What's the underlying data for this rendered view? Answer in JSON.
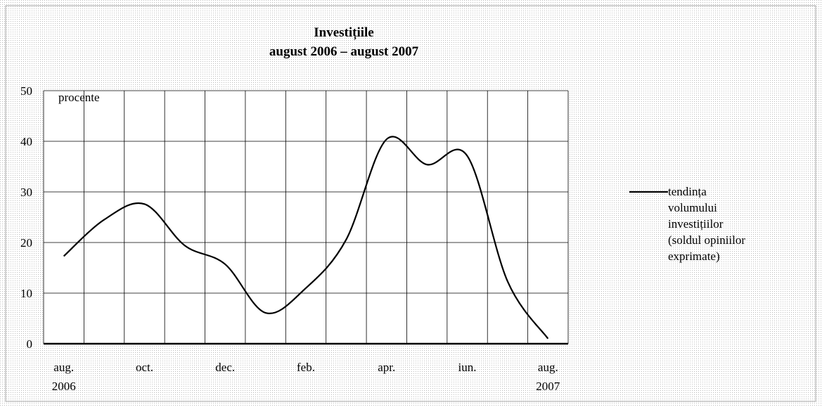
{
  "chart_data": {
    "type": "line",
    "title": "Investițiile",
    "subtitle": "august 2006 – august 2007",
    "y_label": "procente",
    "categories": [
      "aug. 2006",
      null,
      "oct.",
      null,
      "dec.",
      null,
      "feb.",
      null,
      "apr.",
      null,
      "iun.",
      null,
      "aug. 2007"
    ],
    "series": [
      {
        "name": "tendința volumului investițiilor (soldul opiniilor exprimate)",
        "color": "#000000",
        "values": [
          17.3,
          24.5,
          27.6,
          19.4,
          15.7,
          6.1,
          11,
          20.6,
          40.4,
          35.4,
          37.1,
          12.3,
          1
        ]
      }
    ],
    "ylim": [
      0,
      50
    ],
    "yticks": [
      0,
      10,
      20,
      30,
      40,
      50
    ],
    "grid": true,
    "legend": "right"
  }
}
